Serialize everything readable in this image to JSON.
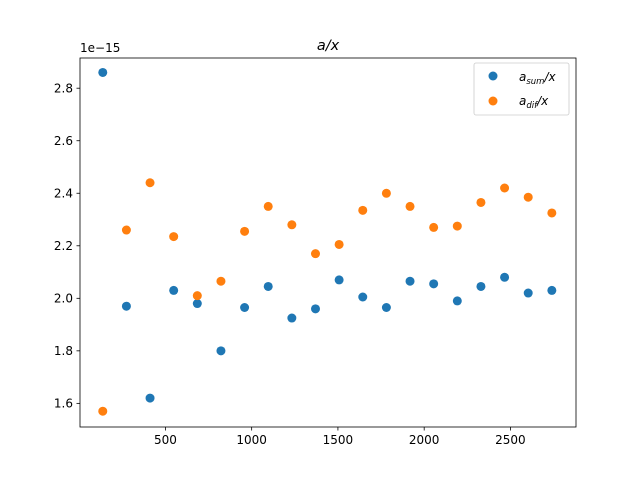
{
  "chart_data": {
    "type": "scatter",
    "title": "a/x",
    "offset_label": "1e−15",
    "xlim": [
      5,
      2880
    ],
    "ylim": [
      1.51,
      2.915
    ],
    "x_ticks": [
      500,
      1000,
      1500,
      2000,
      2500
    ],
    "y_ticks": [
      1.6,
      1.8,
      2.0,
      2.2,
      2.4,
      2.6,
      2.8
    ],
    "y_tick_labels": [
      "1.6",
      "1.8",
      "2.0",
      "2.2",
      "2.4",
      "2.6",
      "2.8"
    ],
    "legend_position": "upper-right",
    "series": [
      {
        "name": "a_sum/x",
        "name_base": "a",
        "name_sub": "sum",
        "name_tail": "/x",
        "color": "#1f77b4",
        "x": [
          137,
          274,
          411,
          548,
          685,
          822,
          959,
          1096,
          1233,
          1370,
          1507,
          1644,
          1781,
          1918,
          2055,
          2192,
          2329,
          2466,
          2603,
          2740
        ],
        "y": [
          2.86,
          1.97,
          1.62,
          2.03,
          1.98,
          1.8,
          1.965,
          2.045,
          1.925,
          1.96,
          2.07,
          2.005,
          1.965,
          2.065,
          2.055,
          1.99,
          2.045,
          2.08,
          2.02,
          2.03
        ]
      },
      {
        "name": "a_dif/x",
        "name_base": "a",
        "name_sub": "dif",
        "name_tail": "/x",
        "color": "#ff7f0e",
        "x": [
          137,
          274,
          411,
          548,
          685,
          822,
          959,
          1096,
          1233,
          1370,
          1507,
          1644,
          1781,
          1918,
          2055,
          2192,
          2329,
          2466,
          2603,
          2740
        ],
        "y": [
          1.57,
          2.26,
          2.44,
          2.235,
          2.01,
          2.065,
          2.255,
          2.35,
          2.28,
          2.17,
          2.205,
          2.335,
          2.4,
          2.35,
          2.27,
          2.275,
          2.365,
          2.42,
          2.385,
          2.325
        ]
      }
    ]
  }
}
